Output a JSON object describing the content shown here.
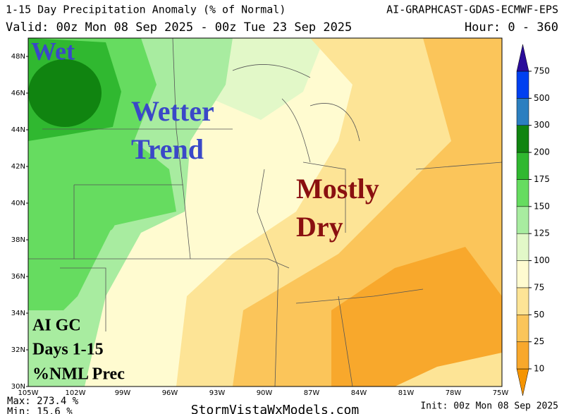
{
  "header": {
    "title": "1-15 Day Precipitation Anomaly (% of Normal)",
    "model": "AI-GRAPHCAST-GDAS-ECMWF-EPS",
    "valid": "Valid: 00z Mon 08 Sep 2025 - 00z Tue 23 Sep 2025",
    "hour": "Hour: 0 - 360"
  },
  "latitudes": [
    "48N",
    "46N",
    "44N",
    "42N",
    "40N",
    "38N",
    "36N",
    "34N",
    "32N",
    "30N"
  ],
  "longitudes": [
    "105W",
    "102W",
    "99W",
    "96W",
    "93W",
    "90W",
    "87W",
    "84W",
    "81W",
    "78W",
    "75W"
  ],
  "colorbar": {
    "levels": [
      10,
      25,
      50,
      75,
      100,
      125,
      150,
      175,
      200,
      300,
      500,
      750
    ],
    "colors": [
      "#f59400",
      "#f8a82c",
      "#fbc55a",
      "#fde496",
      "#fffbd0",
      "#e2f8c8",
      "#a8eca0",
      "#66dc60",
      "#30b830",
      "#108410",
      "#2c7fc0",
      "#0040f0",
      "#2a0c9a"
    ]
  },
  "annotations": {
    "wet": "Wet",
    "wetter_1": "Wetter",
    "wetter_2": "Trend",
    "dry_1": "Mostly",
    "dry_2": "Dry",
    "box_1": "AI GC",
    "box_2": "Days 1-15",
    "box_3": "%NML Prec"
  },
  "footer": {
    "max": "Max: 273.4 %",
    "min": "Min: 15.6 %",
    "site": "StormVistaWxModels.com",
    "init": "Init: 00z Mon 08 Sep 2025"
  }
}
